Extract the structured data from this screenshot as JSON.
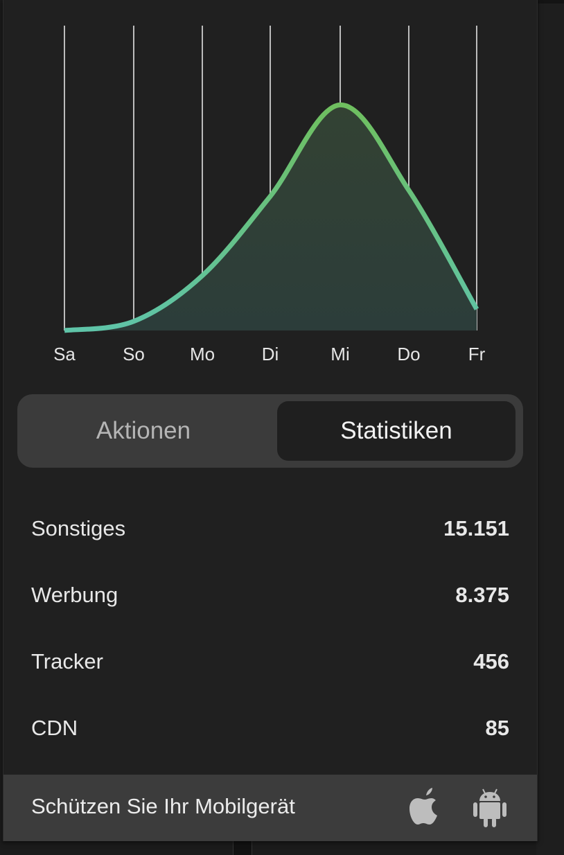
{
  "chart_data": {
    "type": "area",
    "categories": [
      "Sa",
      "So",
      "Mo",
      "Di",
      "Mi",
      "Do",
      "Fr"
    ],
    "values": [
      0,
      3,
      18,
      44,
      74,
      46,
      7
    ],
    "ylim": [
      0,
      100
    ],
    "grid": "vertical",
    "colors": {
      "line_top": "#6fbf5f",
      "line_bottom": "#5fc4a8",
      "fill": "#2f4038"
    }
  },
  "tabs": [
    {
      "label": "Aktionen",
      "active": false
    },
    {
      "label": "Statistiken",
      "active": true
    }
  ],
  "stats": [
    {
      "label": "Sonstiges",
      "value": "15.151"
    },
    {
      "label": "Werbung",
      "value": "8.375"
    },
    {
      "label": "Tracker",
      "value": "456"
    },
    {
      "label": "CDN",
      "value": "85"
    }
  ],
  "footer": {
    "text": "Schützen Sie Ihr Mobilgerät",
    "icons": [
      "apple-icon",
      "android-icon"
    ]
  }
}
